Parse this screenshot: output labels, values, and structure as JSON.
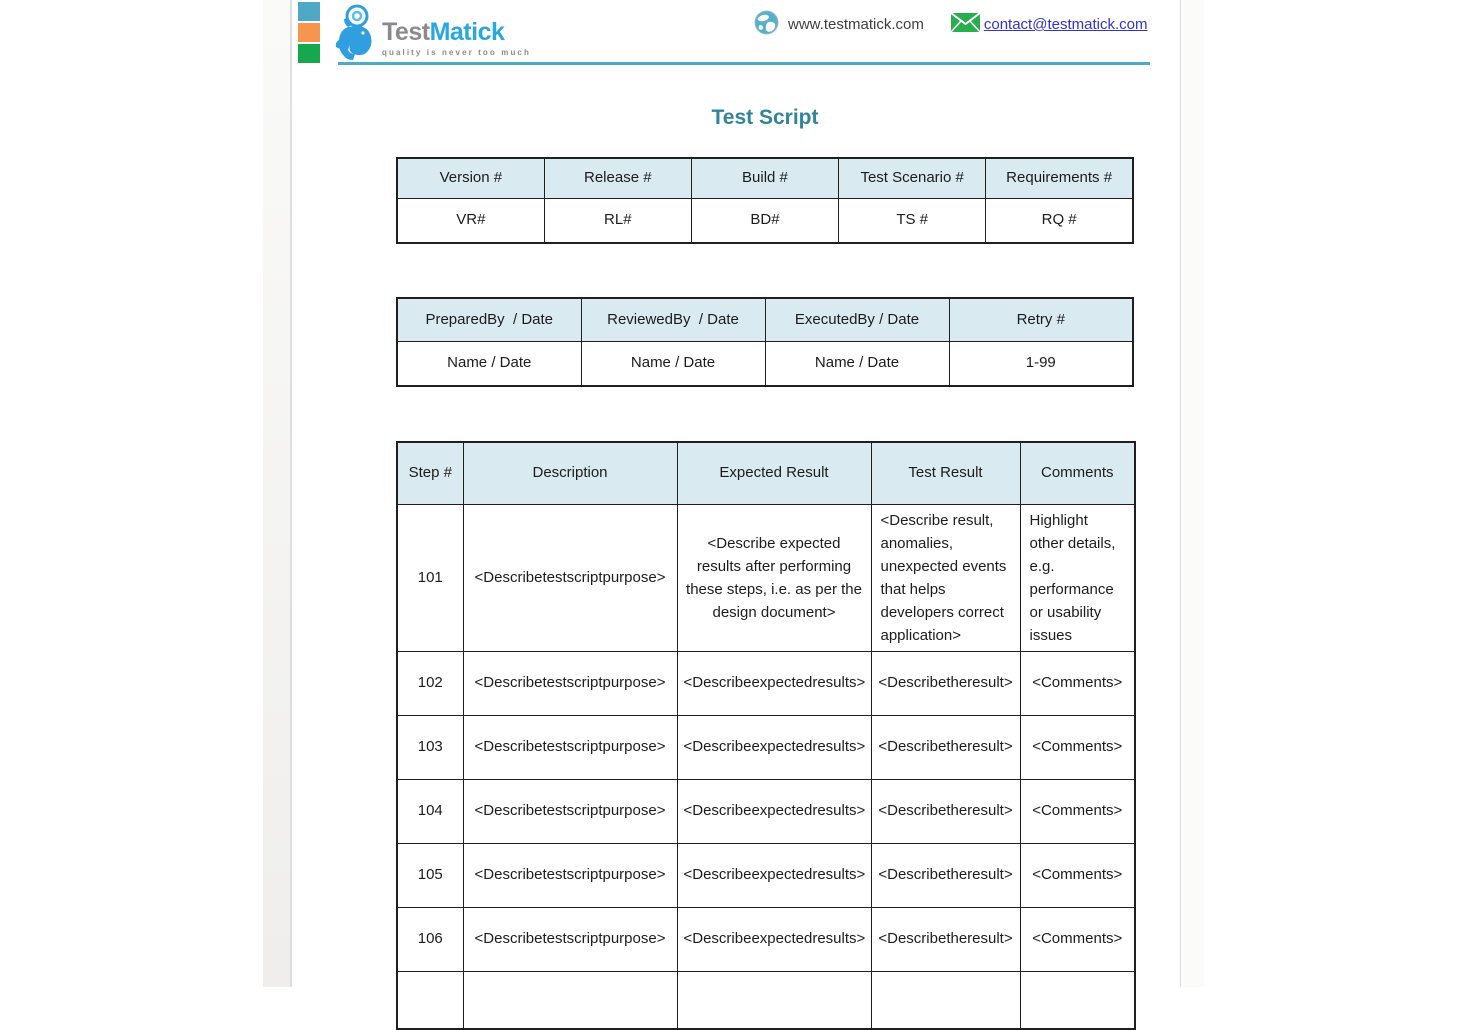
{
  "logo": {
    "text_gray": "Test",
    "text_blue": "Matick",
    "tagline": "quality is never too much"
  },
  "header": {
    "website": "www.testmatick.com",
    "email": "contact@testmatick.com"
  },
  "title": "Test Script",
  "colors": {
    "title_teal": "#31849B",
    "header_rule": "#4BACC6",
    "table_header_fill": "#DAEAF1",
    "table_border": "#1F1F1F",
    "link_blue": "#3333CC",
    "accent_square_blue": "#4FA8C5",
    "accent_square_orange": "#F6954D",
    "accent_square_green": "#16A74F",
    "logo_blue": "#29A8E0",
    "logo_gray": "#8A8A8D",
    "envelope_green": "#27AE4E",
    "globe_teal": "#54B1CC"
  },
  "tables": {
    "info": {
      "headers": [
        "Version #",
        "Release #",
        "Build #",
        "Test Scenario #",
        "Requirements #"
      ],
      "values": [
        "VR#",
        "RL#",
        "BD#",
        "TS #",
        "RQ #"
      ]
    },
    "signoff": {
      "headers": [
        "PreparedBy  / Date",
        "ReviewedBy  / Date",
        "ExecutedBy / Date",
        "Retry #"
      ],
      "values": [
        "Name / Date",
        "Name / Date",
        "Name / Date",
        "1-99"
      ]
    },
    "steps": {
      "headers": [
        "Step #",
        "Description",
        "Expected Result",
        "Test Result",
        "Comments"
      ],
      "rows": [
        {
          "step": "101",
          "description": "<Describetestscriptpurpose>",
          "expected": "<Describe expected results after performing these steps, i.e. as per the design document>",
          "result": "<Describe result, anomalies, unexpected events that helps developers correct application>",
          "comments": "Highlight other details, e.g. performance or usability issues"
        },
        {
          "step": "102",
          "description": "<Describetestscriptpurpose>",
          "expected": "<Describeexpectedresults>",
          "result": "<Describetheresult>",
          "comments": "<Comments>"
        },
        {
          "step": "103",
          "description": "<Describetestscriptpurpose>",
          "expected": "<Describeexpectedresults>",
          "result": "<Describetheresult>",
          "comments": "<Comments>"
        },
        {
          "step": "104",
          "description": "<Describetestscriptpurpose>",
          "expected": "<Describeexpectedresults>",
          "result": "<Describetheresult>",
          "comments": "<Comments>"
        },
        {
          "step": "105",
          "description": "<Describetestscriptpurpose>",
          "expected": "<Describeexpectedresults>",
          "result": "<Describetheresult>",
          "comments": "<Comments>"
        },
        {
          "step": "106",
          "description": "<Describetestscriptpurpose>",
          "expected": "<Describeexpectedresults>",
          "result": "<Describetheresult>",
          "comments": "<Comments>"
        },
        {
          "step": "",
          "description": "",
          "expected": "",
          "result": "",
          "comments": ""
        }
      ]
    }
  }
}
